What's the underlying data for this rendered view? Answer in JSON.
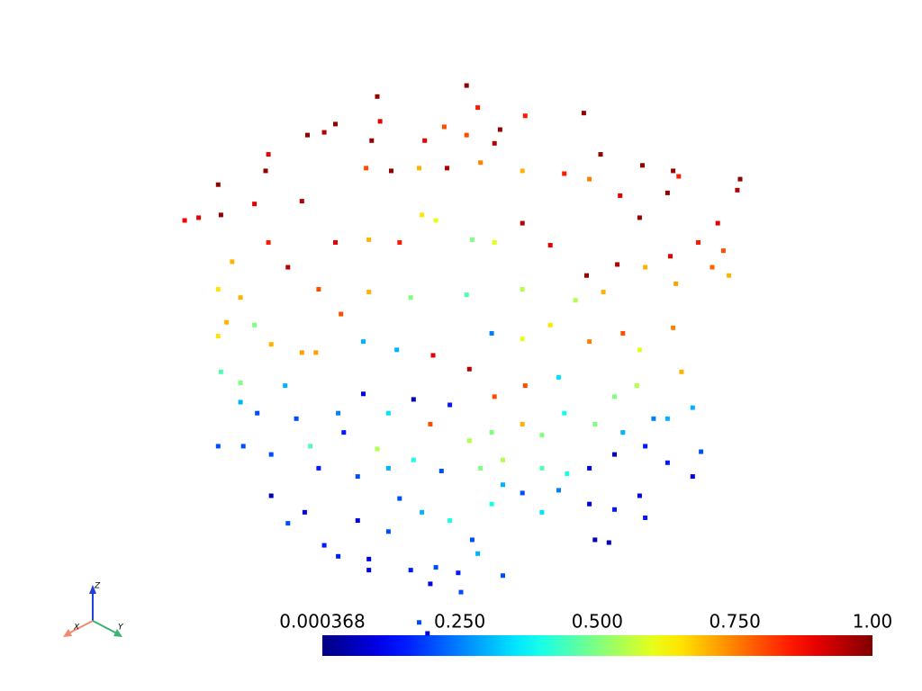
{
  "chart_data": {
    "type": "scatter",
    "colormap": "jet",
    "xlim": [
      -1,
      1
    ],
    "ylim": [
      -1,
      1
    ],
    "x": [
      0.02,
      -0.3,
      0.44,
      0.23,
      -0.45,
      -0.29,
      -0.06,
      0.06,
      -0.55,
      -0.49,
      -0.32,
      0.12,
      0.14,
      0.02,
      -0.13,
      0.5,
      -0.7,
      -0.69,
      -0.87,
      0.65,
      0.76,
      1.0,
      0.99,
      0.74,
      0.78,
      -0.94,
      -0.99,
      -0.86,
      -0.74,
      -0.57,
      -0.34,
      -0.25,
      -0.15,
      -0.05,
      0.07,
      0.22,
      0.37,
      0.46,
      0.57,
      0.64,
      0.92,
      0.85,
      0.94,
      0.96,
      0.9,
      0.75,
      0.66,
      0.77,
      0.56,
      0.45,
      0.32,
      0.22,
      0.12,
      0.04,
      -0.09,
      -0.14,
      -0.22,
      -0.33,
      -0.45,
      -0.62,
      -0.69,
      -0.82,
      -0.87,
      -0.79,
      -0.51,
      -0.33,
      -0.18,
      0.02,
      0.22,
      0.41,
      0.51,
      -0.87,
      -0.84,
      -0.74,
      -0.68,
      -0.57,
      -0.52,
      -0.86,
      -0.79,
      -0.63,
      -0.43,
      -0.35,
      -0.23,
      -0.1,
      0.03,
      0.11,
      0.22,
      0.32,
      0.46,
      0.58,
      0.64,
      0.76,
      0.79,
      0.63,
      0.55,
      0.35,
      0.23,
      0.12,
      -0.04,
      -0.17,
      -0.26,
      -0.35,
      -0.44,
      -0.59,
      -0.73,
      -0.79,
      -0.87,
      -0.78,
      -0.68,
      -0.54,
      -0.51,
      -0.42,
      -0.3,
      -0.11,
      0.03,
      0.11,
      0.22,
      0.29,
      0.37,
      0.48,
      0.58,
      0.69,
      0.74,
      0.83,
      0.86,
      0.83,
      0.74,
      0.66,
      0.55,
      0.46,
      0.38,
      0.29,
      0.15,
      0.07,
      -0.07,
      -0.17,
      -0.26,
      -0.37,
      -0.68,
      -0.56,
      -0.62,
      -0.49,
      -0.44,
      -0.37,
      -0.33,
      -0.26,
      -0.22,
      -0.14,
      -0.04,
      0.04,
      0.11,
      0.15,
      0.22,
      0.29,
      0.35,
      0.46,
      0.55,
      0.64,
      0.66,
      0.48,
      0.53,
      -0.33,
      -0.18,
      -0.09,
      -0.01,
      0.06,
      0.15,
      -0.11,
      0.0,
      -0.15,
      -0.12
    ],
    "y": [
      0.99,
      0.95,
      0.89,
      0.88,
      0.85,
      0.86,
      0.84,
      0.91,
      0.81,
      0.82,
      0.79,
      0.78,
      0.83,
      0.81,
      0.79,
      0.74,
      0.68,
      0.74,
      0.63,
      0.7,
      0.68,
      0.65,
      0.61,
      0.6,
      0.66,
      0.51,
      0.5,
      0.52,
      0.56,
      0.57,
      0.69,
      0.68,
      0.69,
      0.69,
      0.71,
      0.68,
      0.67,
      0.65,
      0.59,
      0.51,
      0.49,
      0.42,
      0.39,
      0.3,
      0.33,
      0.37,
      0.33,
      0.27,
      0.34,
      0.3,
      0.41,
      0.49,
      0.42,
      0.43,
      0.5,
      0.52,
      0.42,
      0.43,
      0.42,
      0.33,
      0.42,
      0.35,
      0.25,
      0.22,
      0.25,
      0.24,
      0.22,
      0.23,
      0.25,
      0.21,
      0.24,
      0.08,
      0.13,
      0.12,
      0.05,
      0.02,
      0.02,
      -0.05,
      -0.09,
      -0.1,
      0.16,
      0.06,
      0.03,
      0.01,
      -0.04,
      0.09,
      0.07,
      0.12,
      0.06,
      0.09,
      0.03,
      0.11,
      -0.05,
      -0.1,
      -0.14,
      -0.07,
      -0.1,
      -0.14,
      -0.17,
      -0.15,
      -0.2,
      -0.13,
      -0.2,
      -0.22,
      -0.2,
      -0.16,
      -0.32,
      -0.32,
      -0.35,
      -0.32,
      -0.4,
      -0.27,
      -0.33,
      -0.24,
      -0.3,
      -0.27,
      -0.24,
      -0.28,
      -0.2,
      -0.24,
      -0.27,
      -0.22,
      -0.22,
      -0.18,
      -0.34,
      -0.43,
      -0.38,
      -0.32,
      -0.35,
      -0.4,
      -0.42,
      -0.4,
      -0.37,
      -0.4,
      -0.41,
      -0.37,
      -0.4,
      -0.43,
      -0.5,
      -0.56,
      -0.6,
      -0.68,
      -0.72,
      -0.59,
      -0.73,
      -0.63,
      -0.51,
      -0.56,
      -0.59,
      -0.66,
      -0.53,
      -0.46,
      -0.49,
      -0.56,
      -0.48,
      -0.53,
      -0.55,
      -0.5,
      -0.58,
      -0.66,
      -0.67,
      -0.77,
      -0.77,
      -0.76,
      -0.78,
      -0.71,
      -0.79,
      -0.82,
      -0.85,
      -0.96,
      -1.0
    ],
    "values": [
      0.98,
      0.98,
      0.98,
      0.85,
      0.98,
      0.9,
      0.8,
      0.85,
      0.98,
      0.95,
      0.98,
      0.95,
      0.98,
      0.8,
      0.9,
      0.98,
      0.98,
      0.9,
      0.98,
      0.98,
      0.98,
      0.98,
      0.95,
      0.98,
      0.85,
      0.9,
      0.88,
      0.98,
      0.9,
      0.95,
      0.8,
      0.98,
      0.7,
      0.95,
      0.75,
      0.7,
      0.85,
      0.75,
      0.9,
      0.98,
      0.9,
      0.85,
      0.8,
      0.7,
      0.78,
      0.9,
      0.7,
      0.72,
      0.95,
      0.98,
      0.9,
      0.95,
      0.6,
      0.5,
      0.6,
      0.65,
      0.85,
      0.7,
      0.9,
      0.95,
      0.85,
      0.7,
      0.65,
      0.7,
      0.8,
      0.7,
      0.5,
      0.45,
      0.55,
      0.55,
      0.7,
      0.65,
      0.7,
      0.5,
      0.7,
      0.72,
      0.72,
      0.45,
      0.5,
      0.3,
      0.8,
      0.3,
      0.3,
      0.9,
      0.95,
      0.25,
      0.6,
      0.65,
      0.75,
      0.8,
      0.6,
      0.75,
      0.7,
      0.55,
      0.5,
      0.35,
      0.8,
      0.8,
      0.15,
      0.05,
      0.35,
      0.1,
      0.25,
      0.2,
      0.2,
      0.3,
      0.2,
      0.2,
      0.2,
      0.45,
      0.15,
      0.15,
      0.55,
      0.8,
      0.55,
      0.5,
      0.7,
      0.5,
      0.4,
      0.5,
      0.3,
      0.25,
      0.3,
      0.3,
      0.2,
      0.1,
      0.15,
      0.15,
      0.05,
      0.1,
      0.4,
      0.45,
      0.55,
      0.5,
      0.2,
      0.4,
      0.3,
      0.2,
      0.05,
      0.1,
      0.2,
      0.15,
      0.15,
      0.1,
      0.1,
      0.2,
      0.2,
      0.3,
      0.4,
      0.2,
      0.4,
      0.3,
      0.2,
      0.35,
      0.25,
      0.1,
      0.15,
      0.1,
      0.15,
      0.05,
      0.05,
      0.1,
      0.15,
      0.2,
      0.15,
      0.3,
      0.2,
      0.1,
      0.2,
      0.2,
      0.1
    ],
    "colorbar": {
      "clim": [
        0.000368,
        1
      ],
      "ticks": [
        0.000368,
        {
          "value": 0.25,
          "label": "0.250"
        },
        {
          "value": 0.5,
          "label": "0.500"
        },
        {
          "value": 0.75,
          "label": "0.750"
        },
        {
          "value": 1,
          "label": "1.00"
        }
      ]
    },
    "axes_labels": [
      "X",
      "Y",
      "Z"
    ]
  }
}
